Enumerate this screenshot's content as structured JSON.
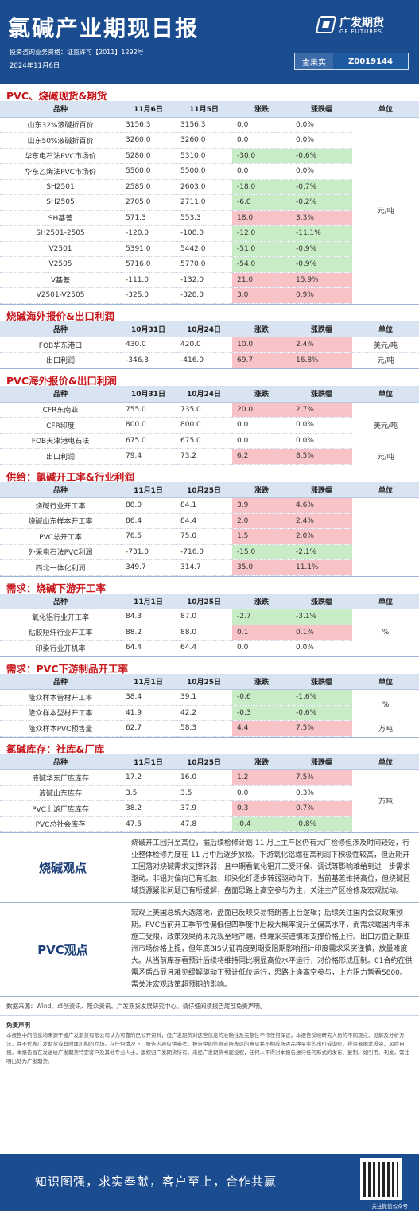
{
  "header": {
    "title": "氯碱产业期现日报",
    "qualification": "投资咨询业务资格：证监许可【2011】1292号",
    "date": "2024年11月6日",
    "logo_cn": "广发期货",
    "logo_en": "GF FUTURES",
    "license_key": "金果实",
    "license_val": "Z0019144"
  },
  "s1": {
    "title": "PVC、烧碱现货&期货",
    "headers": [
      "品种",
      "11月6日",
      "11月5日",
      "涨跌",
      "涨跌幅",
      "单位"
    ],
    "unit": "元/吨",
    "rows": [
      [
        "山东32%液碱折百价",
        "3156.3",
        "3156.3",
        "0.0",
        "0.0%"
      ],
      [
        "山东50%液碱折百价",
        "3260.0",
        "3260.0",
        "0.0",
        "0.0%"
      ],
      [
        "华东电石法PVC市场价",
        "5280.0",
        "5310.0",
        "-30.0",
        "-0.6%"
      ],
      [
        "华东乙烯法PVC市场价",
        "5500.0",
        "5500.0",
        "0.0",
        "0.0%"
      ],
      [
        "SH2501",
        "2585.0",
        "2603.0",
        "-18.0",
        "-0.7%"
      ],
      [
        "SH2505",
        "2705.0",
        "2711.0",
        "-6.0",
        "-0.2%"
      ],
      [
        "SH基差",
        "571.3",
        "553.3",
        "18.0",
        "3.3%"
      ],
      [
        "SH2501-2505",
        "-120.0",
        "-108.0",
        "-12.0",
        "-11.1%"
      ],
      [
        "V2501",
        "5391.0",
        "5442.0",
        "-51.0",
        "-0.9%"
      ],
      [
        "V2505",
        "5716.0",
        "5770.0",
        "-54.0",
        "-0.9%"
      ],
      [
        "V基差",
        "-111.0",
        "-132.0",
        "21.0",
        "15.9%"
      ],
      [
        "V2501-V2505",
        "-325.0",
        "-328.0",
        "3.0",
        "0.9%"
      ]
    ]
  },
  "s2": {
    "title": "烧碱海外报价&出口利润",
    "headers": [
      "品种",
      "10月31日",
      "10月24日",
      "涨跌",
      "涨跌幅",
      "单位"
    ],
    "rows": [
      [
        "FOB华东港口",
        "430.0",
        "420.0",
        "10.0",
        "2.4%",
        "美元/吨"
      ],
      [
        "出口利润",
        "-346.3",
        "-416.0",
        "69.7",
        "16.8%",
        "元/吨"
      ]
    ]
  },
  "s3": {
    "title": "PVC海外报价&出口利润",
    "headers": [
      "品种",
      "10月31日",
      "10月24日",
      "涨跌",
      "涨跌幅",
      "单位"
    ],
    "unit1": "美元/吨",
    "unit2": "元/吨",
    "rows": [
      [
        "CFR东南亚",
        "755.0",
        "735.0",
        "20.0",
        "2.7%"
      ],
      [
        "CFR印度",
        "800.0",
        "800.0",
        "0.0",
        "0.0%"
      ],
      [
        "FOB天津港电石法",
        "675.0",
        "675.0",
        "0.0",
        "0.0%"
      ],
      [
        "出口利润",
        "79.4",
        "73.2",
        "6.2",
        "8.5%"
      ]
    ]
  },
  "s4": {
    "title": "供给：氯碱开工率&行业利润",
    "headers": [
      "品种",
      "11月1日",
      "10月25日",
      "涨跌",
      "涨跌幅",
      "单位"
    ],
    "rows": [
      [
        "烧碱行业开工率",
        "88.0",
        "84.1",
        "3.9",
        "4.6%"
      ],
      [
        "烧碱山东样本开工率",
        "86.4",
        "84.4",
        "2.0",
        "2.4%"
      ],
      [
        "PVC总开工率",
        "76.5",
        "75.0",
        "1.5",
        "2.0%"
      ],
      [
        "外采电石法PVC利润",
        "-731.0",
        "-716.0",
        "-15.0",
        "-2.1%"
      ],
      [
        "西北一体化利润",
        "349.7",
        "314.7",
        "35.0",
        "11.1%"
      ]
    ]
  },
  "s5": {
    "title": "需求：烧碱下游开工率",
    "headers": [
      "品种",
      "11月1日",
      "10月25日",
      "涨跌",
      "涨跌幅",
      "单位"
    ],
    "unit": "%",
    "rows": [
      [
        "氧化铝行业开工率",
        "84.3",
        "87.0",
        "-2.7",
        "-3.1%"
      ],
      [
        "粘胶短纤行业开工率",
        "88.2",
        "88.0",
        "0.1",
        "0.1%"
      ],
      [
        "印染行业开机率",
        "64.4",
        "64.4",
        "0.0",
        "0.0%"
      ]
    ]
  },
  "s6": {
    "title": "需求：PVC下游制品开工率",
    "headers": [
      "品种",
      "11月1日",
      "10月25日",
      "涨跌",
      "涨跌幅",
      "单位"
    ],
    "unit1": "%",
    "unit2": "万吨",
    "rows": [
      [
        "隆众样本管材开工率",
        "38.4",
        "39.1",
        "-0.6",
        "-1.6%"
      ],
      [
        "隆众样本型材开工率",
        "41.9",
        "42.2",
        "-0.3",
        "-0.6%"
      ],
      [
        "隆众样本PVC预售量",
        "62.7",
        "58.3",
        "4.4",
        "7.5%"
      ]
    ]
  },
  "s7": {
    "title": "氯碱库存：社库&厂库",
    "headers": [
      "品种",
      "11月1日",
      "10月25日",
      "涨跌",
      "涨跌幅",
      "单位"
    ],
    "unit": "万吨",
    "rows": [
      [
        "液碱华东厂库库存",
        "17.2",
        "16.0",
        "1.2",
        "7.5%"
      ],
      [
        "液碱山东库存",
        "3.5",
        "3.5",
        "0.0",
        "0.3%"
      ],
      [
        "PVC上游厂库库存",
        "38.2",
        "37.9",
        "0.3",
        "0.7%"
      ],
      [
        "PVC总社会库存",
        "47.5",
        "47.8",
        "-0.4",
        "-0.8%"
      ]
    ]
  },
  "view1": {
    "label": "烧碱观点",
    "text": "烧碱开工回升至高位，据后续检修计划 11 月上主产区仍有大厂检修但涉及时间较短，行业整体检修力度在 11 月中后逐步放松。下游氧化铝端在高利润下积极性较高，但近期开工回落对烧碱需求支撑转弱；且中期看氧化铝开工受环保、调试等影响难给到进一步需求驱动。非铝对偏向已有抵触，印染化纤逐步转弱驱动向下。当前基差维持高位，但烧碱区域货源紧张问题已有所缓解，盘面思路上高空参与为主，关注主产区检修及宏观扰动。"
  },
  "view2": {
    "label": "PVC观点",
    "text": "宏观上美国总统大选落地，盘面已反映交易特朗普上台逻辑；后续关注国内会议政策预期。PVC当前开工季节性偏低但四季度中后段大概率提升至偏高水平，而需求端国内年末施工受限，政策效果尚未兑现至地产端，终端采买谨慎难支撑价格上行。出口方面近期亚洲市场价格上提，但年底BIS认证再度到期受阻期影响预计印度需求采买谨慎，放量难度大。从当前库存看预计后续将维持同比明显高位水平运行，对价格形成压制。01合约在供需矛盾凸显且难见缓解驱动下预计低位运行，思路上逢高空参与，上方阻力暂看5800。需关注宏观政策超预期的影响。"
  },
  "source": "数据来源：Wind、卓创资讯、隆众资讯、广发期货发展研究中心。请仔细阅读报告尾部免责声明。",
  "disclaimer_title": "免责声明",
  "disclaimer": "本报告中的信息均来源于被广发期货有限公司认为可靠的已公开资料，但广发期货对这些信息的准确性及完整性不作任何保证。本报告反映研究人员的不同观点、见解及分析方法，并不代表广发期货或其附属机构的立场。在任何情况下，报告内容仅供参考，报告中的信息或所表达的意见并不构成所述品种买卖的出价或询价，投资者据此投资，风险自担。本报告旨在发送给广发期货特定客户及其他专业人士，版权归广发期货所有，未经广发期货书面授权，任何人不得对本报告进行任何形式的发布、复制。如引用、刊发，需注明出处为广发期货。",
  "footer": {
    "slogan": "知识图强，求实奉献，客户至上，合作共赢",
    "qr_caption": "关注微信公众号"
  }
}
